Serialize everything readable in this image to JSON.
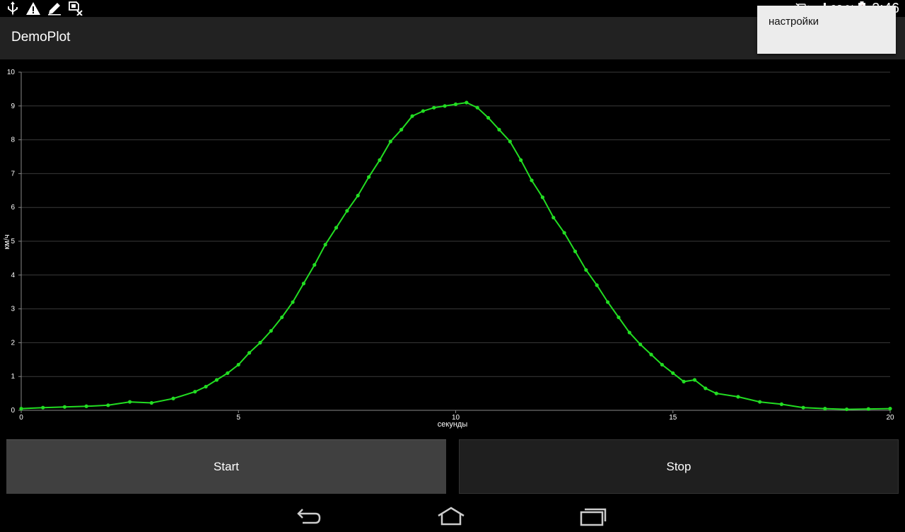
{
  "status_bar": {
    "icons": [
      "usb-icon",
      "warning-icon",
      "edit-icon",
      "sim-error-icon",
      "vibrate-icon",
      "signal-icon",
      "battery-icon"
    ],
    "battery_percent": "93 %",
    "time": "2:46"
  },
  "action_bar": {
    "title": "DemoPlot",
    "menu": {
      "settings_label": "настройки"
    }
  },
  "chart_data": {
    "type": "line",
    "xlabel": "секунды",
    "ylabel": "км/ч",
    "xlim": [
      0,
      20
    ],
    "ylim": [
      0,
      10
    ],
    "x_ticks": [
      0,
      5,
      10,
      15,
      20
    ],
    "y_ticks": [
      0,
      1,
      2,
      3,
      4,
      5,
      6,
      7,
      8,
      9,
      10
    ],
    "grid": "horizontal",
    "series": [
      {
        "color": "#22dd22",
        "marker": "circle",
        "x": [
          0,
          0.5,
          1,
          1.5,
          2,
          2.5,
          3,
          3.5,
          4,
          4.25,
          4.5,
          4.75,
          5,
          5.25,
          5.5,
          5.75,
          6,
          6.25,
          6.5,
          6.75,
          7,
          7.25,
          7.5,
          7.75,
          8,
          8.25,
          8.5,
          8.75,
          9,
          9.25,
          9.5,
          9.75,
          10,
          10.25,
          10.5,
          10.75,
          11,
          11.25,
          11.5,
          11.75,
          12,
          12.25,
          12.5,
          12.75,
          13,
          13.25,
          13.5,
          13.75,
          14,
          14.25,
          14.5,
          14.75,
          15,
          15.25,
          15.5,
          15.75,
          16,
          16.5,
          17,
          17.5,
          18,
          18.5,
          19,
          19.5,
          20
        ],
        "y": [
          0.05,
          0.08,
          0.1,
          0.12,
          0.15,
          0.25,
          0.22,
          0.35,
          0.55,
          0.7,
          0.9,
          1.1,
          1.35,
          1.7,
          2.0,
          2.35,
          2.75,
          3.2,
          3.75,
          4.3,
          4.9,
          5.4,
          5.9,
          6.35,
          6.9,
          7.4,
          7.95,
          8.3,
          8.7,
          8.85,
          8.95,
          9.0,
          9.05,
          9.1,
          8.95,
          8.65,
          8.3,
          7.95,
          7.4,
          6.8,
          6.3,
          5.7,
          5.25,
          4.7,
          4.15,
          3.7,
          3.2,
          2.75,
          2.3,
          1.95,
          1.65,
          1.35,
          1.1,
          0.85,
          0.9,
          0.65,
          0.5,
          0.4,
          0.25,
          0.18,
          0.08,
          0.05,
          0.03,
          0.04,
          0.05
        ]
      }
    ]
  },
  "buttons": {
    "start_label": "Start",
    "stop_label": "Stop"
  },
  "nav_bar": {
    "icons": [
      "back-icon",
      "home-icon",
      "recent-apps-icon"
    ]
  }
}
